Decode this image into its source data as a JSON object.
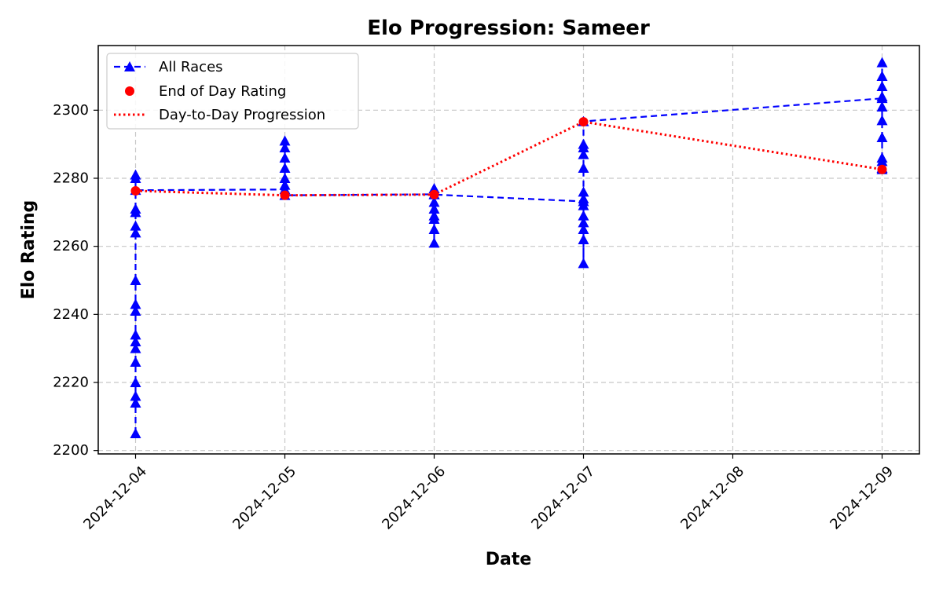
{
  "chart_data": {
    "type": "line",
    "title": "Elo Progression: Sameer",
    "xlabel": "Date",
    "ylabel": "Elo Rating",
    "x_ticks": [
      "2024-12-04",
      "2024-12-05",
      "2024-12-06",
      "2024-12-07",
      "2024-12-08",
      "2024-12-09"
    ],
    "xlim": [
      "2024-12-03 18:00",
      "2024-12-09 06:00"
    ],
    "ylim": [
      2199,
      2319
    ],
    "y_ticks": [
      2200,
      2220,
      2240,
      2260,
      2280,
      2300
    ],
    "grid": true,
    "legend_position": "top-left",
    "series": [
      {
        "name": "All Races",
        "style": "dashed line with triangle markers",
        "color": "#0000ff",
        "points": [
          {
            "x": "2024-12-04",
            "y": 2205
          },
          {
            "x": "2024-12-04",
            "y": 2214
          },
          {
            "x": "2024-12-04",
            "y": 2216
          },
          {
            "x": "2024-12-04",
            "y": 2220
          },
          {
            "x": "2024-12-04",
            "y": 2226
          },
          {
            "x": "2024-12-04",
            "y": 2230
          },
          {
            "x": "2024-12-04",
            "y": 2232
          },
          {
            "x": "2024-12-04",
            "y": 2234
          },
          {
            "x": "2024-12-04",
            "y": 2241
          },
          {
            "x": "2024-12-04",
            "y": 2243
          },
          {
            "x": "2024-12-04",
            "y": 2250
          },
          {
            "x": "2024-12-04",
            "y": 2264
          },
          {
            "x": "2024-12-04",
            "y": 2266
          },
          {
            "x": "2024-12-04",
            "y": 2270
          },
          {
            "x": "2024-12-04",
            "y": 2271
          },
          {
            "x": "2024-12-04",
            "y": 2280
          },
          {
            "x": "2024-12-04",
            "y": 2281
          },
          {
            "x": "2024-12-04",
            "y": 2276.5
          },
          {
            "x": "2024-12-05",
            "y": 2276.7
          },
          {
            "x": "2024-12-05",
            "y": 2291
          },
          {
            "x": "2024-12-05",
            "y": 2289
          },
          {
            "x": "2024-12-05",
            "y": 2286
          },
          {
            "x": "2024-12-05",
            "y": 2283
          },
          {
            "x": "2024-12-05",
            "y": 2280
          },
          {
            "x": "2024-12-05",
            "y": 2278
          },
          {
            "x": "2024-12-05",
            "y": 2275
          },
          {
            "x": "2024-12-06",
            "y": 2275.3
          },
          {
            "x": "2024-12-06",
            "y": 2277
          },
          {
            "x": "2024-12-06",
            "y": 2273
          },
          {
            "x": "2024-12-06",
            "y": 2271
          },
          {
            "x": "2024-12-06",
            "y": 2268
          },
          {
            "x": "2024-12-06",
            "y": 2265
          },
          {
            "x": "2024-12-06",
            "y": 2261
          },
          {
            "x": "2024-12-06",
            "y": 2269
          },
          {
            "x": "2024-12-06",
            "y": 2275.2
          },
          {
            "x": "2024-12-07",
            "y": 2273.2
          },
          {
            "x": "2024-12-07",
            "y": 2255
          },
          {
            "x": "2024-12-07",
            "y": 2262
          },
          {
            "x": "2024-12-07",
            "y": 2265
          },
          {
            "x": "2024-12-07",
            "y": 2267
          },
          {
            "x": "2024-12-07",
            "y": 2269
          },
          {
            "x": "2024-12-07",
            "y": 2272
          },
          {
            "x": "2024-12-07",
            "y": 2274
          },
          {
            "x": "2024-12-07",
            "y": 2276
          },
          {
            "x": "2024-12-07",
            "y": 2283
          },
          {
            "x": "2024-12-07",
            "y": 2287
          },
          {
            "x": "2024-12-07",
            "y": 2289
          },
          {
            "x": "2024-12-07",
            "y": 2290
          },
          {
            "x": "2024-12-07",
            "y": 2296.7
          },
          {
            "x": "2024-12-09",
            "y": 2303.5
          },
          {
            "x": "2024-12-09",
            "y": 2314
          },
          {
            "x": "2024-12-09",
            "y": 2310
          },
          {
            "x": "2024-12-09",
            "y": 2307
          },
          {
            "x": "2024-12-09",
            "y": 2304
          },
          {
            "x": "2024-12-09",
            "y": 2301
          },
          {
            "x": "2024-12-09",
            "y": 2297
          },
          {
            "x": "2024-12-09",
            "y": 2292
          },
          {
            "x": "2024-12-09",
            "y": 2286
          },
          {
            "x": "2024-12-09",
            "y": 2285
          },
          {
            "x": "2024-12-09",
            "y": 2283
          },
          {
            "x": "2024-12-09",
            "y": 2282.6
          }
        ]
      },
      {
        "name": "End of Day Rating",
        "style": "circle markers",
        "color": "#ff0000",
        "points": [
          {
            "x": "2024-12-04",
            "y": 2276.3
          },
          {
            "x": "2024-12-05",
            "y": 2275
          },
          {
            "x": "2024-12-06",
            "y": 2275.2
          },
          {
            "x": "2024-12-07",
            "y": 2296.6
          },
          {
            "x": "2024-12-09",
            "y": 2282.6
          }
        ]
      },
      {
        "name": "Day-to-Day Progression",
        "style": "dotted line",
        "color": "#ff0000",
        "points": [
          {
            "x": "2024-12-04",
            "y": 2276.3
          },
          {
            "x": "2024-12-05",
            "y": 2275
          },
          {
            "x": "2024-12-06",
            "y": 2275.2
          },
          {
            "x": "2024-12-07",
            "y": 2296.6
          },
          {
            "x": "2024-12-09",
            "y": 2282.6
          }
        ]
      }
    ]
  }
}
